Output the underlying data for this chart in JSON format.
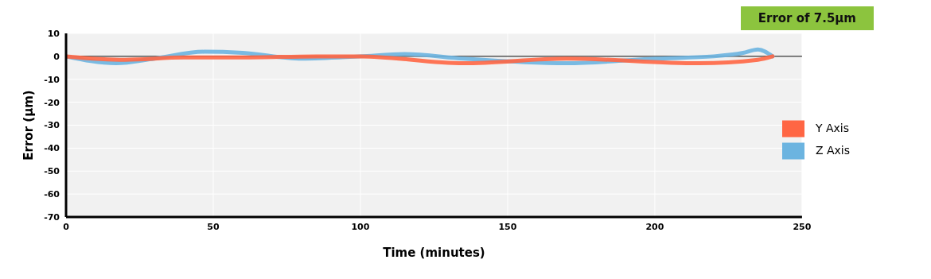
{
  "chart_data": {
    "type": "line",
    "xlabel": "Time (minutes)",
    "ylabel": "Error (µm)",
    "annotations": [
      "Error of 7.5µm"
    ],
    "xlim": [
      0,
      250
    ],
    "xticks": [
      0,
      50,
      100,
      150,
      200,
      250
    ],
    "ylim": [
      -70,
      10
    ],
    "yticks": [
      10,
      0,
      -10,
      -20,
      -30,
      -40,
      -50,
      -60,
      -70
    ],
    "grid": true,
    "legend": "right",
    "marker": "none",
    "line_style": "solid",
    "ref_lines": [
      {
        "axis": "y",
        "value": 0,
        "color": "#000000"
      }
    ],
    "series": [
      {
        "name": "Z Axis",
        "color": "#6cb4e0",
        "x": [
          0,
          17,
          30,
          47,
          60,
          80,
          100,
          115,
          135,
          170,
          200,
          220,
          230,
          235,
          240
        ],
        "values": [
          0,
          -3,
          -1,
          2,
          1.5,
          -1,
          0,
          1,
          -1,
          -3,
          -1,
          0,
          1.5,
          3,
          0
        ]
      },
      {
        "name": "Y Axis",
        "color": "#ff6644",
        "x": [
          0,
          20,
          40,
          60,
          85,
          100,
          135,
          170,
          215,
          235,
          240
        ],
        "values": [
          0,
          -1.5,
          -0.5,
          -0.5,
          0,
          0,
          -3,
          -1,
          -3,
          -1.5,
          0
        ]
      }
    ]
  }
}
